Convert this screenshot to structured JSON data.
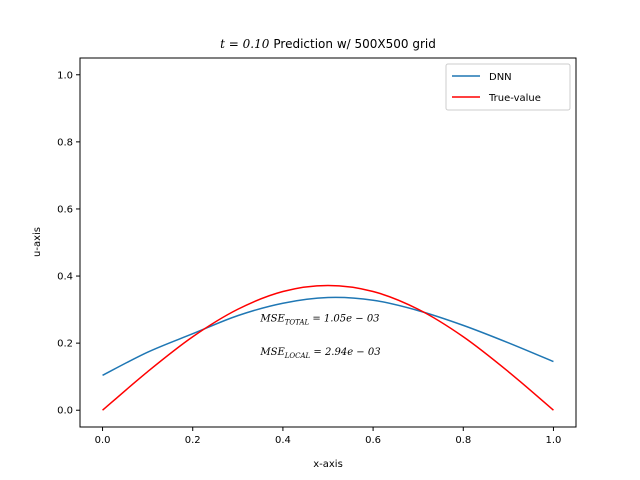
{
  "chart_data": {
    "type": "line",
    "title_math": "t = 0.10",
    "title_text": "Prediction w/ 500X500 grid",
    "xlabel": "x-axis",
    "ylabel": "u-axis",
    "xlim": [
      -0.05,
      1.05
    ],
    "ylim": [
      -0.05,
      1.05
    ],
    "xticks": [
      "0.0",
      "0.2",
      "0.4",
      "0.6",
      "0.8",
      "1.0"
    ],
    "yticks": [
      "0.0",
      "0.2",
      "0.4",
      "0.6",
      "0.8",
      "1.0"
    ],
    "legend_position": "top-right",
    "grid": false,
    "series": [
      {
        "name": "DNN",
        "color": "#1f77b4",
        "x": [
          0.0,
          0.1,
          0.2,
          0.3,
          0.4,
          0.5,
          0.6,
          0.7,
          0.8,
          0.9,
          1.0
        ],
        "y": [
          0.104,
          0.173,
          0.228,
          0.282,
          0.319,
          0.336,
          0.328,
          0.297,
          0.253,
          0.201,
          0.145
        ]
      },
      {
        "name": "True-value",
        "color": "#ff0000",
        "x": [
          0.0,
          0.1,
          0.2,
          0.3,
          0.4,
          0.5,
          0.6,
          0.7,
          0.8,
          0.9,
          1.0
        ],
        "y": [
          0.0,
          0.115,
          0.219,
          0.301,
          0.354,
          0.372,
          0.354,
          0.301,
          0.219,
          0.115,
          0.0
        ]
      }
    ],
    "annotations": [
      {
        "id": "total",
        "main": "MSE",
        "sub": "TOTAL",
        "rest": " = 1.05e − 03",
        "x": 0.35,
        "y": 0.265
      },
      {
        "id": "local",
        "main": "MSE",
        "sub": "LOCAL",
        "rest": " = 2.94e − 03",
        "x": 0.35,
        "y": 0.165
      }
    ]
  }
}
